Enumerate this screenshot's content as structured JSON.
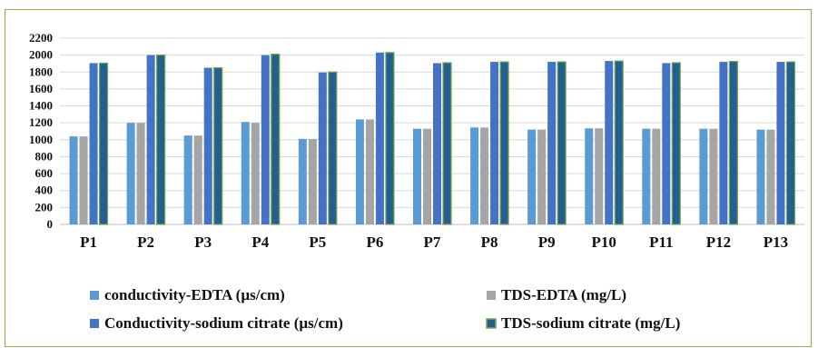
{
  "chart_data": {
    "type": "bar",
    "title": "",
    "xlabel": "",
    "ylabel": "",
    "ylim": [
      0,
      2200
    ],
    "yticks": [
      0,
      200,
      400,
      600,
      800,
      1000,
      1200,
      1400,
      1600,
      1800,
      2000,
      2200
    ],
    "grid": true,
    "legend_position": "bottom",
    "categories": [
      "P1",
      "P2",
      "P3",
      "P4",
      "P5",
      "P6",
      "P7",
      "P8",
      "P9",
      "P10",
      "P11",
      "P12",
      "P13"
    ],
    "series": [
      {
        "name": "conductivity-EDTA (µs/cm)",
        "color": "#5b9bd5",
        "values": [
          1040,
          1200,
          1050,
          1210,
          1010,
          1240,
          1130,
          1145,
          1120,
          1135,
          1130,
          1130,
          1120
        ]
      },
      {
        "name": "TDS-EDTA (mg/L)",
        "color": "#a5a5a5",
        "values": [
          1040,
          1200,
          1050,
          1200,
          1010,
          1240,
          1130,
          1145,
          1120,
          1135,
          1130,
          1130,
          1120
        ]
      },
      {
        "name": "Conductivity-sodium citrate (µs/cm)",
        "color": "#4472c4",
        "values": [
          1905,
          2000,
          1850,
          2000,
          1795,
          2030,
          1905,
          1920,
          1920,
          1930,
          1905,
          1920,
          1920
        ]
      },
      {
        "name": "TDS-sodium citrate (mg/L)",
        "color": "#255e91",
        "edge": "#70ad47",
        "values": [
          1905,
          2000,
          1850,
          2010,
          1800,
          2030,
          1910,
          1920,
          1920,
          1930,
          1910,
          1925,
          1920
        ]
      }
    ]
  }
}
